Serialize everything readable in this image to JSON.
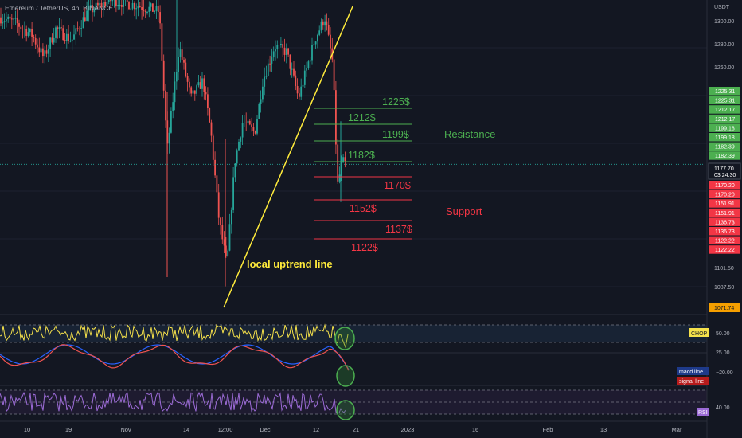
{
  "header": {
    "symbol_text": "Ethereum / TetherUS, 4h, BINANCE"
  },
  "colors": {
    "background": "#131722",
    "bull": "#26a69a",
    "bear": "#ef5350",
    "trendline": "#ffeb3b",
    "resistance": "#4caf50",
    "support": "#f23645",
    "chop": "#f5e14b",
    "macd": "#2962ff",
    "signal": "#ef5350",
    "rsi": "#9c6bd6",
    "axis_text": "#b2b5be"
  },
  "price_axis": {
    "currency": "USDT",
    "ticks": [
      "1300.00",
      "1280.00",
      "1260.00",
      "1101.50",
      "1087.50"
    ],
    "current_price": "1177.70",
    "countdown": "03:24:30",
    "low_badge": "1071.74",
    "green_badges": [
      "1225.31",
      "1225.31",
      "1212.17",
      "1212.17",
      "1199.18",
      "1199.18",
      "1182.39",
      "1182.39"
    ],
    "red_badges": [
      "1170.20",
      "1170.20",
      "1151.91",
      "1151.91",
      "1136.73",
      "1136.73",
      "1122.22",
      "1122.22"
    ]
  },
  "time_axis": {
    "ticks": [
      "10",
      "19",
      "Nov",
      "14",
      "12:00",
      "Dec",
      "12",
      "21",
      "2023",
      "16",
      "Feb",
      "13",
      "Mar"
    ]
  },
  "chart_data": {
    "type": "candlestick",
    "title": "Ethereum / TetherUS, 4h, BINANCE",
    "y_unit": "USDT",
    "resistance_levels": [
      {
        "label": "1225$",
        "value": 1225.31
      },
      {
        "label": "1212$",
        "value": 1212.17
      },
      {
        "label": "1199$",
        "value": 1199.18
      },
      {
        "label": "1182$",
        "value": 1182.39
      }
    ],
    "support_levels": [
      {
        "label": "1170$",
        "value": 1170.2
      },
      {
        "label": "1152$",
        "value": 1151.91
      },
      {
        "label": "1137$",
        "value": 1136.73
      },
      {
        "label": "1122$",
        "value": 1122.22
      }
    ],
    "annotations": {
      "resistance": "Resistance",
      "support": "Support",
      "trendline": "local uptrend line"
    },
    "last_price": 1177.7,
    "period_low": 1071.74
  },
  "indicators": {
    "chop": {
      "label": "CHOP",
      "ticks": [
        "50.00"
      ]
    },
    "macd": {
      "labels": [
        "macd line",
        "signal line"
      ],
      "ticks": [
        "25.00",
        "−20.00"
      ]
    },
    "rsi": {
      "label": "RSI",
      "ticks": [
        "40.00"
      ]
    }
  }
}
